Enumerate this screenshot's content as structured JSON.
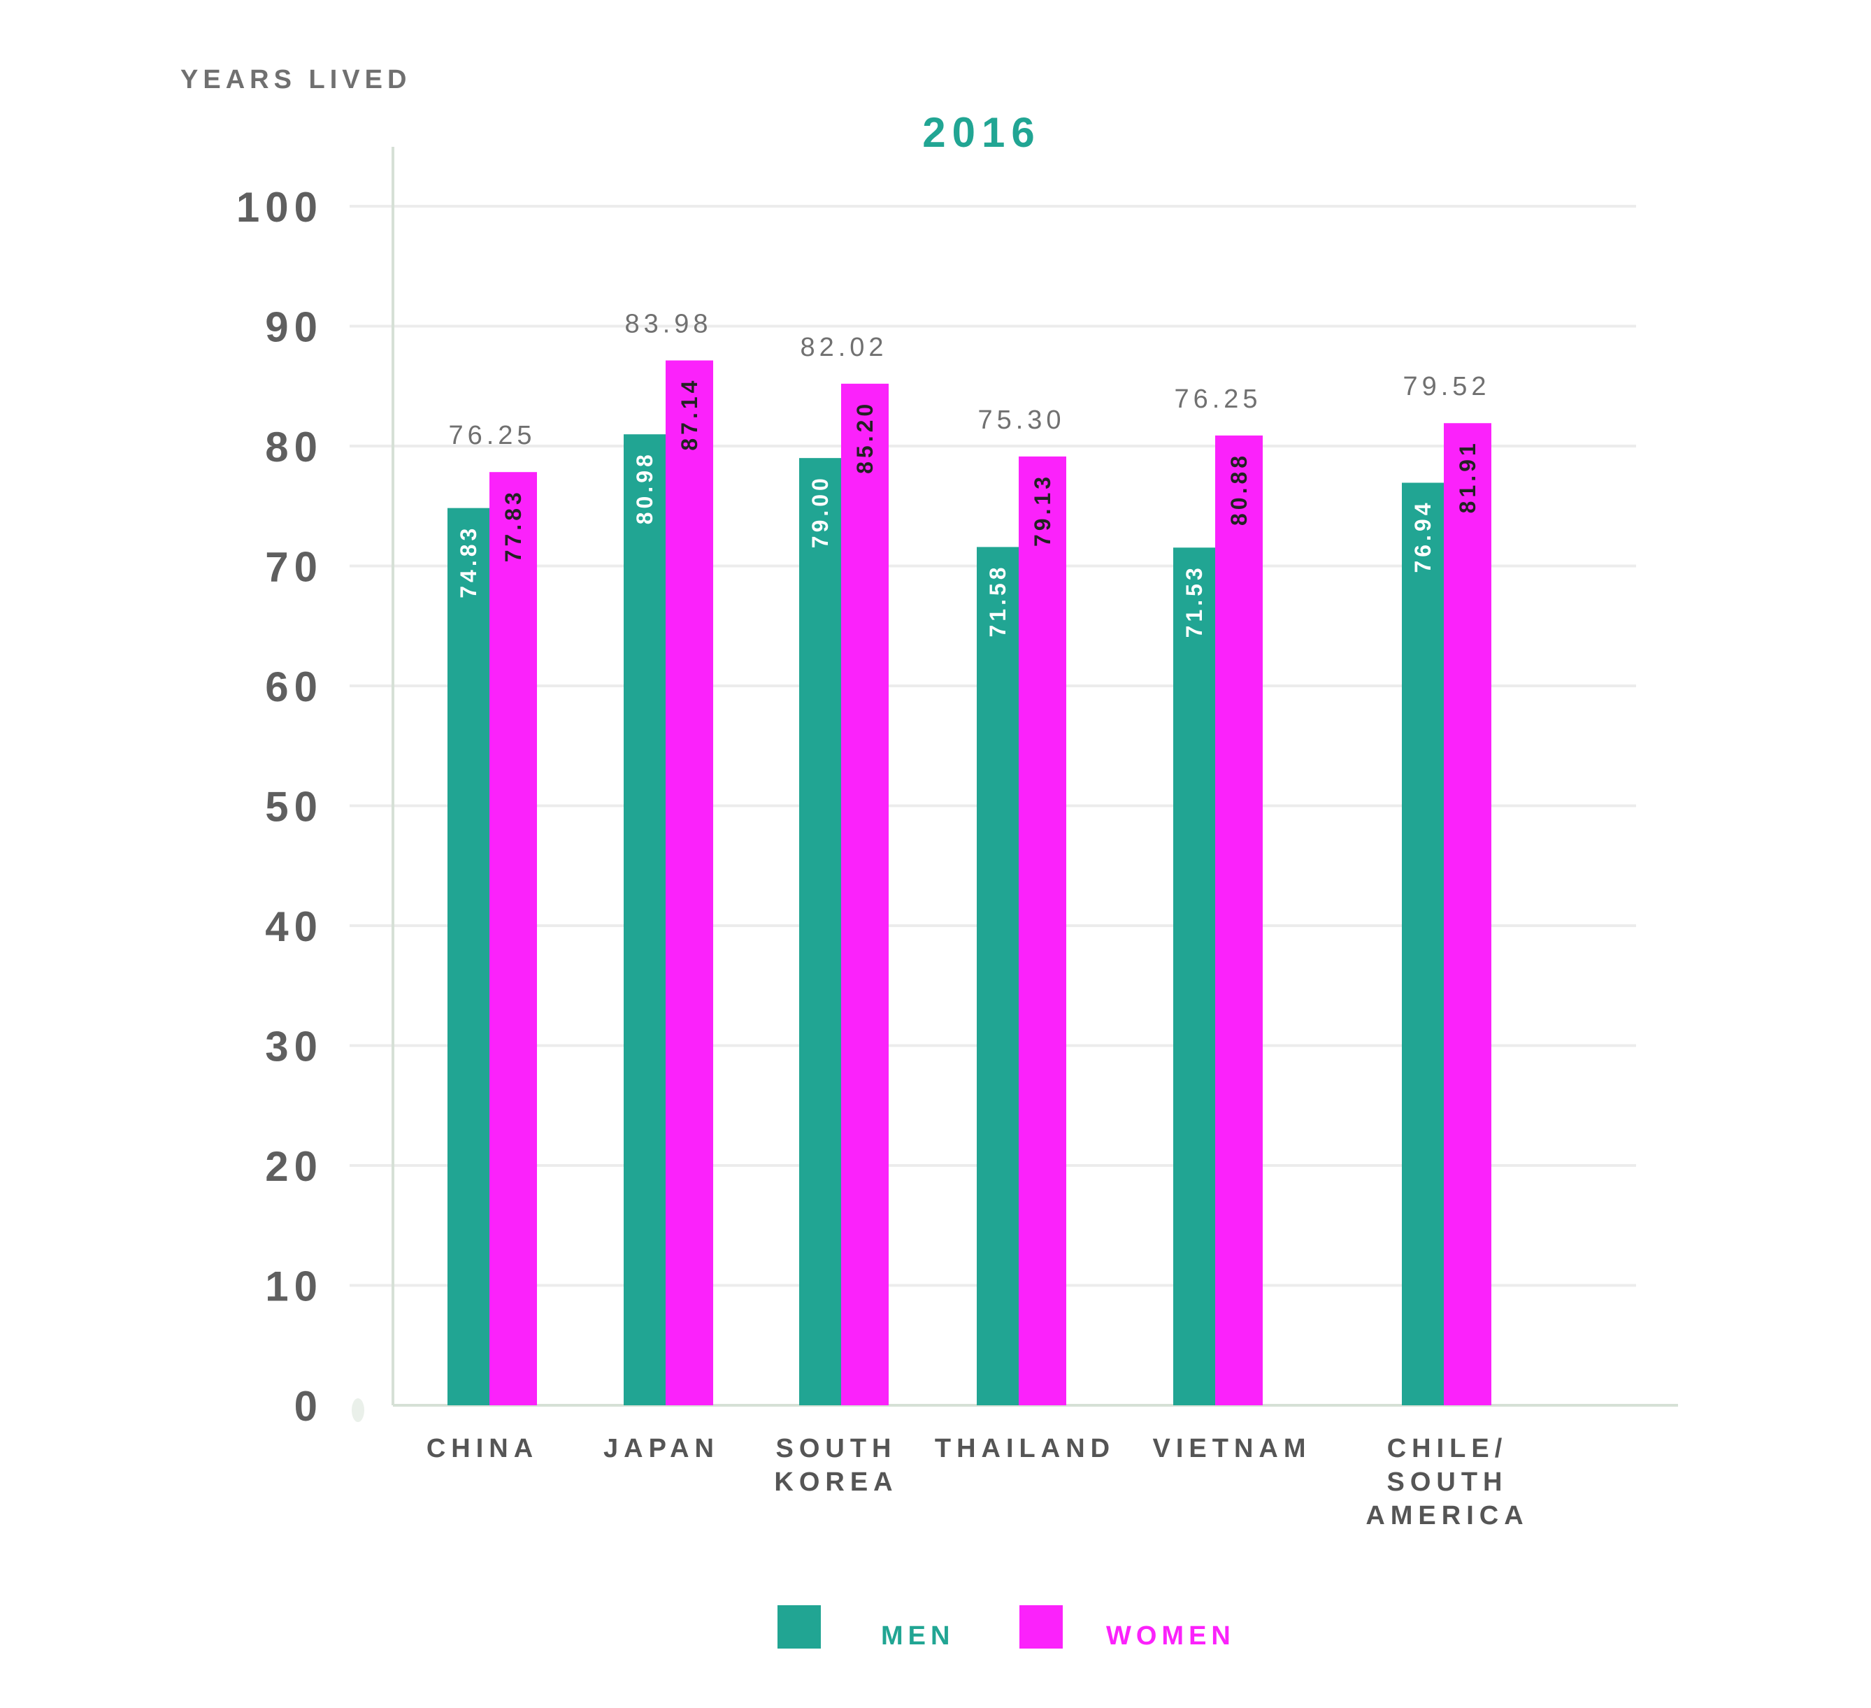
{
  "chart_data": {
    "type": "bar",
    "title": "2016",
    "ylabel": "YEARS LIVED",
    "ylim": [
      0,
      100
    ],
    "yticks": [
      "0",
      "10",
      "20",
      "30",
      "40",
      "50",
      "60",
      "70",
      "80",
      "90",
      "100"
    ],
    "grid": true,
    "legend_position": "bottom",
    "categories": [
      [
        "CHINA"
      ],
      [
        "JAPAN"
      ],
      [
        "SOUTH",
        "KOREA"
      ],
      [
        "THAILAND"
      ],
      [
        "VIETNAM"
      ],
      [
        "CHILE/",
        "SOUTH",
        "AMERICA"
      ]
    ],
    "series": [
      {
        "name": "MEN",
        "color": "#21a593",
        "label_color": "#ffffff",
        "values": [
          74.83,
          80.98,
          79.0,
          71.58,
          71.53,
          76.94
        ],
        "labels": [
          "74.83",
          "80.98",
          "79.00",
          "71.58",
          "71.53",
          "76.94"
        ]
      },
      {
        "name": "WOMEN",
        "color": "#fb22fb",
        "label_color": "#222222",
        "values": [
          77.83,
          87.14,
          85.2,
          79.13,
          80.88,
          81.91
        ],
        "labels": [
          "77.83",
          "87.14",
          "85.20",
          "79.13",
          "80.88",
          "81.91"
        ]
      }
    ],
    "averages": [
      76.25,
      83.98,
      82.02,
      75.3,
      76.25,
      79.52
    ],
    "average_labels": [
      "76.25",
      "83.98",
      "82.02",
      "75.30",
      "76.25",
      "79.52"
    ],
    "title_color": "#21a593",
    "gridline_color": "#ececec",
    "axis_color": "#d6e0d6"
  }
}
